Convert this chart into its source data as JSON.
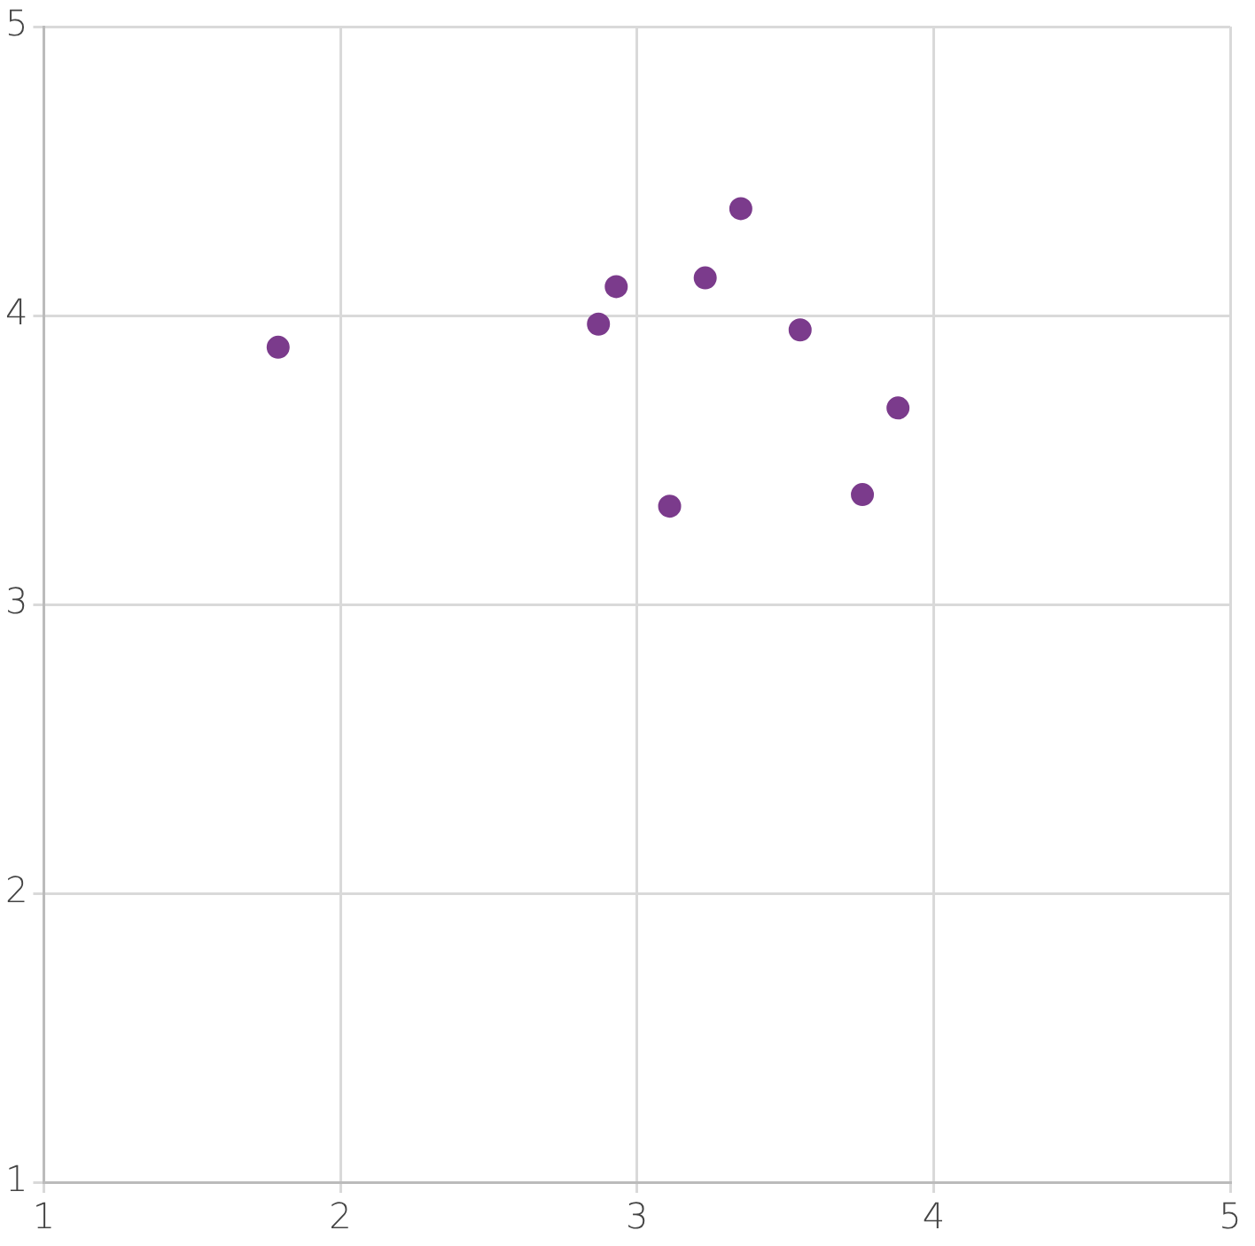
{
  "chart_data": {
    "type": "scatter",
    "x": [
      1.79,
      2.87,
      2.93,
      3.23,
      3.35,
      3.55,
      3.88,
      3.76,
      3.11
    ],
    "series": [
      {
        "color": "#7b3b8c",
        "values": [
          3.89,
          3.97,
          4.1,
          4.13,
          4.37,
          3.95,
          3.68,
          3.38,
          3.34
        ]
      }
    ],
    "xlim": [
      1,
      5
    ],
    "ylim": [
      1,
      5
    ],
    "xticks": [
      1,
      2,
      3,
      4,
      5
    ],
    "yticks": [
      1,
      2,
      3,
      4,
      5
    ],
    "grid": true,
    "legend": false,
    "marker": "circle"
  }
}
